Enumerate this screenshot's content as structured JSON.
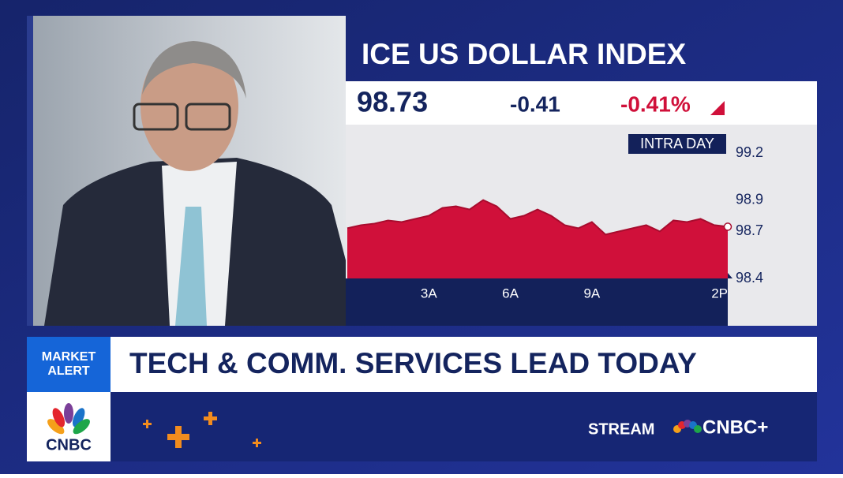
{
  "chart_data": {
    "type": "area",
    "title": "ICE US DOLLAR INDEX",
    "badge": "INTRA DAY",
    "x": [
      0,
      0.5,
      1,
      1.5,
      2,
      2.5,
      3,
      3.5,
      4,
      4.5,
      5,
      5.5,
      6,
      6.5,
      7,
      7.5,
      8,
      8.5,
      9,
      9.5,
      10,
      10.5,
      11,
      11.5,
      12,
      12.5,
      13,
      13.5,
      14
    ],
    "series": [
      {
        "color": "#d0103a",
        "values": [
          98.72,
          98.74,
          98.75,
          98.77,
          98.76,
          98.78,
          98.8,
          98.85,
          98.86,
          98.84,
          98.9,
          98.86,
          98.78,
          98.8,
          98.84,
          98.8,
          98.74,
          98.72,
          98.76,
          98.68,
          98.7,
          98.72,
          98.74,
          98.7,
          98.77,
          98.76,
          98.78,
          98.74,
          98.73
        ]
      }
    ],
    "xlim": [
      0,
      14
    ],
    "xticks": [
      {
        "value": 3,
        "label": "3A"
      },
      {
        "value": 6,
        "label": "6A"
      },
      {
        "value": 9,
        "label": "9A"
      },
      {
        "value": 14,
        "label": "2P"
      }
    ],
    "ylim": [
      98.4,
      99.2
    ],
    "yticks": [
      99.2,
      98.9,
      98.7,
      98.4
    ]
  },
  "quote": {
    "price": "98.73",
    "change": "-0.41",
    "change_pct": "-0.41%"
  },
  "lower_third": {
    "alert": [
      "MARKET",
      "ALERT"
    ],
    "headline": "TECH & COMM. SERVICES LEAD TODAY"
  },
  "footer": {
    "logo": "CNBC",
    "stream": "STREAM",
    "brand": "CNBC+"
  }
}
